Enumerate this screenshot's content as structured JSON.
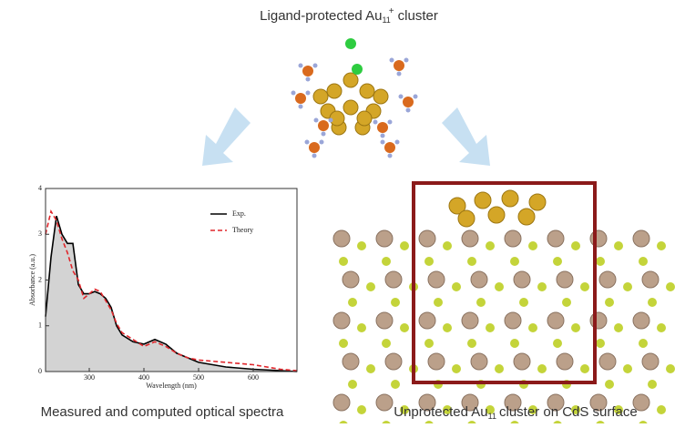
{
  "top_label": {
    "prefix": "Ligand-protected Au",
    "subscript": "11",
    "superscript": "+",
    "suffix": "cluster"
  },
  "left_caption": "Measured and computed optical spectra",
  "right_caption": {
    "prefix": "Unprotected Au",
    "subscript": "11",
    "suffix": "cluster on CdS surface"
  },
  "chart_data": {
    "type": "line",
    "x_label": "Wavelength (nm)",
    "y_label": "Absorbance (a.u.)",
    "x": [
      220,
      230,
      240,
      250,
      260,
      270,
      280,
      290,
      300,
      310,
      320,
      330,
      340,
      350,
      360,
      380,
      400,
      420,
      440,
      460,
      480,
      500,
      550,
      600,
      650,
      680
    ],
    "series": [
      {
        "name": "Exp.",
        "color": "#000000",
        "fill": "#d3d3d3",
        "dash": false,
        "values": [
          1.2,
          2.5,
          3.4,
          3.0,
          2.8,
          2.8,
          1.9,
          1.7,
          1.7,
          1.75,
          1.7,
          1.6,
          1.4,
          1.0,
          0.8,
          0.65,
          0.6,
          0.7,
          0.6,
          0.4,
          0.3,
          0.2,
          0.1,
          0.05,
          0.02,
          0
        ]
      },
      {
        "name": "Theory",
        "color": "#e0262b",
        "dash": true,
        "values": [
          3.0,
          3.5,
          3.3,
          2.9,
          2.6,
          2.2,
          2.0,
          1.6,
          1.7,
          1.8,
          1.75,
          1.55,
          1.35,
          1.05,
          0.85,
          0.7,
          0.55,
          0.65,
          0.55,
          0.4,
          0.3,
          0.25,
          0.2,
          0.15,
          0.05,
          0.02
        ]
      }
    ],
    "xlim": [
      220,
      680
    ],
    "ylim": [
      0,
      4
    ],
    "xticks": [
      300,
      400,
      500,
      600
    ],
    "yticks": [
      0,
      1,
      2,
      3,
      4
    ],
    "legend": "upper right"
  }
}
